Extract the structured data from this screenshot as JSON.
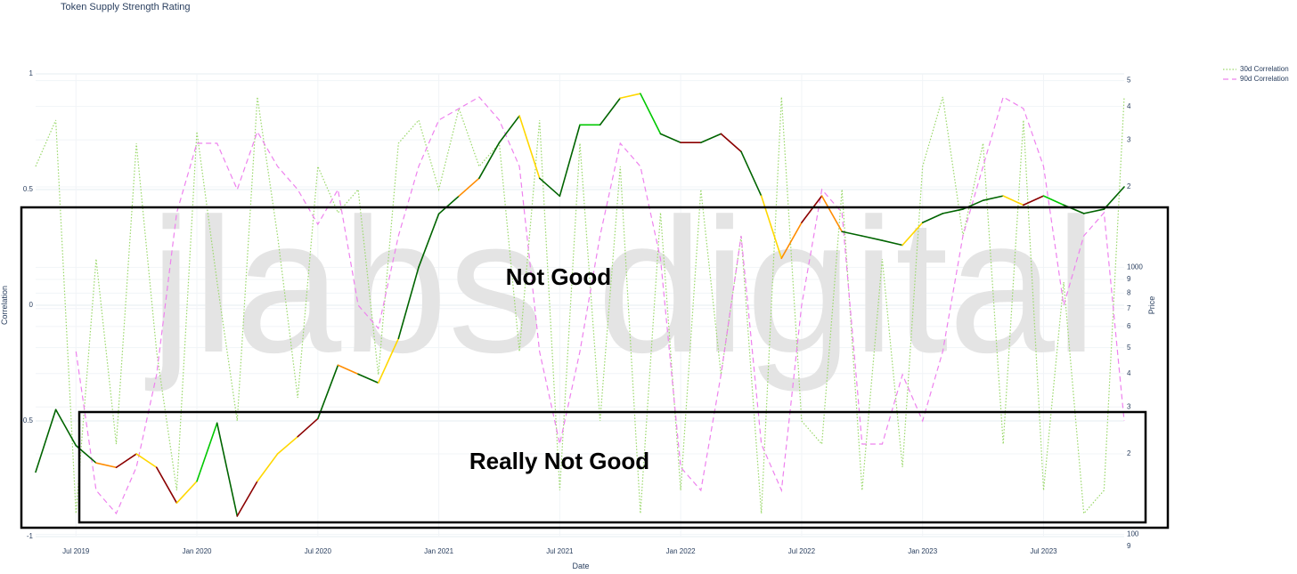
{
  "chart_data": {
    "type": "line",
    "title": "Token Supply Strength Rating",
    "watermark": "jlabs digital",
    "x_label": "Date",
    "y_label": "Correlation",
    "y2_label": "Price",
    "annotations": [
      "Not Good",
      "Really Not Good"
    ],
    "x": [
      "2019-05",
      "2019-06",
      "2019-07",
      "2019-08",
      "2019-09",
      "2019-10",
      "2019-11",
      "2019-12",
      "2020-01",
      "2020-02",
      "2020-03",
      "2020-04",
      "2020-05",
      "2020-06",
      "2020-07",
      "2020-08",
      "2020-09",
      "2020-10",
      "2020-11",
      "2020-12",
      "2021-01",
      "2021-02",
      "2021-03",
      "2021-04",
      "2021-05",
      "2021-06",
      "2021-07",
      "2021-08",
      "2021-09",
      "2021-10",
      "2021-11",
      "2021-12",
      "2022-01",
      "2022-02",
      "2022-03",
      "2022-04",
      "2022-05",
      "2022-06",
      "2022-07",
      "2022-08",
      "2022-09",
      "2022-10",
      "2022-11",
      "2022-12",
      "2023-01",
      "2023-02",
      "2023-03",
      "2023-04",
      "2023-05",
      "2023-06",
      "2023-07",
      "2023-08",
      "2023-09",
      "2023-10",
      "2023-11"
    ],
    "xlim": [
      "2019-05",
      "2023-11"
    ],
    "xticks": [
      {
        "value": "2019-07",
        "label": "Jul 2019"
      },
      {
        "value": "2020-01",
        "label": "Jan 2020"
      },
      {
        "value": "2020-07",
        "label": "Jul 2020"
      },
      {
        "value": "2021-01",
        "label": "Jan 2021"
      },
      {
        "value": "2021-07",
        "label": "Jul 2021"
      },
      {
        "value": "2022-01",
        "label": "Jan 2022"
      },
      {
        "value": "2022-07",
        "label": "Jul 2022"
      },
      {
        "value": "2023-01",
        "label": "Jan 2023"
      },
      {
        "value": "2023-07",
        "label": "Jul 2023"
      }
    ],
    "ylim": [
      -1,
      1
    ],
    "yticks": [
      -1,
      -0.5,
      0,
      0.5,
      1
    ],
    "y2lim": [
      98,
      5300
    ],
    "y2log": true,
    "y2ticks": [
      {
        "value": 90,
        "label": "9"
      },
      100,
      {
        "value": 200,
        "label": "2"
      },
      {
        "value": 300,
        "label": "3"
      },
      {
        "value": 400,
        "label": "4"
      },
      {
        "value": 500,
        "label": "5"
      },
      {
        "value": 600,
        "label": "6"
      },
      {
        "value": 700,
        "label": "7"
      },
      {
        "value": 800,
        "label": "8"
      },
      {
        "value": 900,
        "label": "9"
      },
      1000,
      {
        "value": 2000,
        "label": "2"
      },
      {
        "value": 3000,
        "label": "3"
      },
      {
        "value": 4000,
        "label": "4"
      },
      {
        "value": 5000,
        "label": "5"
      }
    ],
    "grid": true,
    "legend": "top-right",
    "series": [
      {
        "name": "30d Correlation",
        "color": "#9ad86a",
        "dash": "dot",
        "values": [
          0.6,
          0.8,
          -0.9,
          0.2,
          -0.6,
          0.7,
          -0.2,
          -0.8,
          0.75,
          0.1,
          -0.5,
          0.9,
          0.3,
          -0.4,
          0.6,
          0.4,
          0.5,
          -0.3,
          0.7,
          0.8,
          0.5,
          0.85,
          0.6,
          0.7,
          -0.2,
          0.8,
          -0.8,
          0.7,
          -0.5,
          0.6,
          -0.9,
          0.4,
          -0.8,
          0.5,
          -0.3,
          0.3,
          -0.9,
          0.9,
          -0.5,
          -0.6,
          0.5,
          -0.8,
          0.2,
          -0.7,
          0.6,
          0.9,
          0.3,
          0.7,
          -0.6,
          0.8,
          -0.8,
          0.1,
          -0.9,
          -0.8,
          0.9
        ]
      },
      {
        "name": "90d Correlation",
        "color": "#ee82ee",
        "dash": "dash",
        "values": [
          null,
          null,
          -0.2,
          -0.8,
          -0.9,
          -0.7,
          -0.3,
          0.4,
          0.7,
          0.7,
          0.5,
          0.75,
          0.6,
          0.5,
          0.35,
          0.5,
          0.0,
          -0.1,
          0.3,
          0.6,
          0.8,
          0.85,
          0.9,
          0.8,
          0.6,
          -0.2,
          -0.6,
          -0.2,
          0.3,
          0.7,
          0.6,
          0.2,
          -0.7,
          -0.8,
          -0.3,
          0.3,
          -0.6,
          -0.8,
          0.0,
          0.5,
          0.4,
          -0.6,
          -0.6,
          -0.3,
          -0.5,
          -0.2,
          0.3,
          0.6,
          0.9,
          0.85,
          0.6,
          0.0,
          0.3,
          0.4,
          -0.5
        ]
      },
      {
        "axis": "y2",
        "values": [
          171,
          293,
          215,
          185,
          178,
          200,
          178,
          131,
          158,
          261,
          117,
          158,
          200,
          232,
          271,
          430,
          398,
          369,
          541,
          1000,
          1585,
          1848,
          2154,
          2929,
          3690,
          2154,
          1848,
          3415,
          3415,
          4300,
          4470,
          3160,
          2930,
          2930,
          3160,
          2710,
          1850,
          1080,
          1470,
          1850,
          1360,
          1310,
          1260,
          1210,
          1470,
          1590,
          1650,
          1780,
          1850,
          1710,
          1850,
          1710,
          1590,
          1650,
          2000
        ],
        "colors": [
          "#006400",
          "#006400",
          "#006400",
          "#ff8c00",
          "#8b0000",
          "#ffd700",
          "#8b0000",
          "#ffd700",
          "#00c800",
          "#006400",
          "#8b0000",
          "#ffd700",
          "#ffd700",
          "#8b0000",
          "#006400",
          "#ff8c00",
          "#006400",
          "#ffd700",
          "#006400",
          "#006400",
          "#006400",
          "#ff8c00",
          "#006400",
          "#006400",
          "#ffd700",
          "#006400",
          "#006400",
          "#00c800",
          "#006400",
          "#ffd700",
          "#00c800",
          "#006400",
          "#8b0000",
          "#006400",
          "#8b0000",
          "#006400",
          "#ffd700",
          "#ff8c00",
          "#8b0000",
          "#ff8c00",
          "#006400",
          "#006400",
          "#006400",
          "#ffd700",
          "#006400",
          "#006400",
          "#006400",
          "#006400",
          "#ffd700",
          "#8b0000",
          "#00c800",
          "#006400",
          "#006400",
          "#006400",
          "#006400"
        ]
      }
    ]
  }
}
